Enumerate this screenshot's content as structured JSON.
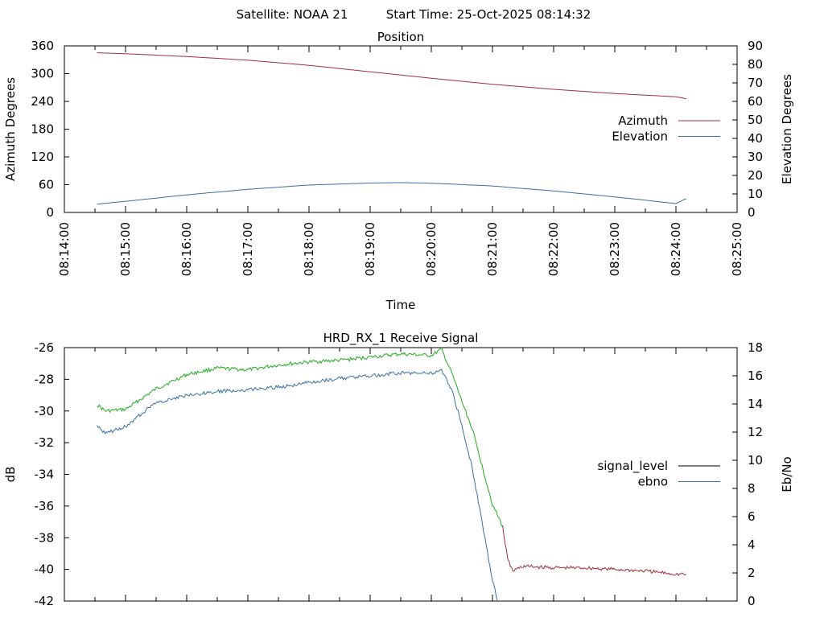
{
  "header": {
    "satellite": "Satellite: NOAA 21",
    "start_time": "Start Time: 25-Oct-2025 08:14:32"
  },
  "chart_data": [
    {
      "type": "line",
      "title": "Position",
      "xlabel": "Time",
      "ylabel": "Azimuth Degrees",
      "ylabel_right": "Elevation Degrees",
      "xlim": [
        "08:14:00",
        "08:25:00"
      ],
      "ylim": [
        0,
        360
      ],
      "ylim_right": [
        0,
        90
      ],
      "x_ticks": [
        "08:14:00",
        "08:15:00",
        "08:16:00",
        "08:17:00",
        "08:18:00",
        "08:19:00",
        "08:20:00",
        "08:21:00",
        "08:22:00",
        "08:23:00",
        "08:24:00",
        "08:25:00"
      ],
      "y_ticks": [
        0,
        60,
        120,
        180,
        240,
        300,
        360
      ],
      "y_ticks_right": [
        0,
        10,
        20,
        30,
        40,
        50,
        60,
        70,
        80,
        90
      ],
      "grid": false,
      "legend_position": "right",
      "series": [
        {
          "name": "Azimuth",
          "axis": "left",
          "color": "#a0303a",
          "x": [
            "08:14:32",
            "08:15:00",
            "08:16:00",
            "08:17:00",
            "08:18:00",
            "08:19:00",
            "08:20:00",
            "08:21:00",
            "08:22:00",
            "08:23:00",
            "08:24:00",
            "08:24:10"
          ],
          "y": [
            345,
            343,
            337,
            329,
            318,
            304,
            290,
            277,
            266,
            257,
            250,
            246
          ]
        },
        {
          "name": "Elevation",
          "axis": "right",
          "color": "#3a6fa3",
          "x": [
            "08:14:32",
            "08:15:00",
            "08:16:00",
            "08:17:00",
            "08:18:00",
            "08:19:00",
            "08:19:30",
            "08:20:00",
            "08:21:00",
            "08:22:00",
            "08:23:00",
            "08:24:00",
            "08:24:10"
          ],
          "y": [
            4.5,
            6,
            9.5,
            12.5,
            14.8,
            15.9,
            16.1,
            15.8,
            14.3,
            11.6,
            8.4,
            4.8,
            7.5
          ]
        }
      ]
    },
    {
      "type": "line",
      "title": "HRD_RX_1 Receive Signal",
      "xlabel": "",
      "ylabel": "dB",
      "ylabel_right": "Eb/No",
      "xlim": [
        "08:14:00",
        "08:25:00"
      ],
      "ylim": [
        -42,
        -26
      ],
      "ylim_right": [
        0,
        18
      ],
      "y_ticks": [
        -42,
        -40,
        -38,
        -36,
        -34,
        -32,
        -30,
        -28,
        -26
      ],
      "y_ticks_right": [
        0,
        2,
        4,
        6,
        8,
        10,
        12,
        14,
        16,
        18
      ],
      "grid": false,
      "legend_position": "right",
      "series": [
        {
          "name": "signal_level",
          "axis": "left",
          "color": "#000000",
          "segments": [
            {
              "color": "#1faa1f",
              "x": [
                "08:14:32",
                "08:14:40",
                "08:15:00",
                "08:15:30",
                "08:16:00",
                "08:16:30",
                "08:17:00",
                "08:17:30",
                "08:18:00",
                "08:18:30",
                "08:19:00",
                "08:19:30",
                "08:20:00",
                "08:20:10",
                "08:20:20",
                "08:20:30",
                "08:20:40",
                "08:20:50",
                "08:21:00",
                "08:21:10"
              ],
              "y": [
                -29.6,
                -30.0,
                -29.9,
                -28.6,
                -27.7,
                -27.3,
                -27.4,
                -27.1,
                -26.9,
                -26.8,
                -26.6,
                -26.4,
                -26.5,
                -26.1,
                -27.6,
                -29.4,
                -31.1,
                -33.5,
                -35.9,
                -37.3
              ]
            },
            {
              "color": "#a0303a",
              "x": [
                "08:21:10",
                "08:21:15",
                "08:21:20",
                "08:21:30",
                "08:22:00",
                "08:22:30",
                "08:23:00",
                "08:23:30",
                "08:24:00",
                "08:24:10"
              ],
              "y": [
                -37.3,
                -39.4,
                -40.1,
                -39.8,
                -39.9,
                -39.9,
                -40.0,
                -40.1,
                -40.3,
                -40.3
              ]
            }
          ]
        },
        {
          "name": "ebno",
          "axis": "right",
          "color": "#3a6fa3",
          "x": [
            "08:14:32",
            "08:14:40",
            "08:15:00",
            "08:15:30",
            "08:16:00",
            "08:16:30",
            "08:17:00",
            "08:17:30",
            "08:18:00",
            "08:18:30",
            "08:19:00",
            "08:19:30",
            "08:20:00",
            "08:20:10",
            "08:20:20",
            "08:20:30",
            "08:20:40",
            "08:20:50",
            "08:21:00",
            "08:21:05"
          ],
          "y": [
            12.5,
            11.9,
            12.4,
            14.1,
            14.6,
            14.9,
            15.0,
            15.2,
            15.5,
            15.8,
            16.0,
            16.2,
            16.2,
            16.4,
            15.0,
            12.5,
            9.5,
            5.5,
            1.5,
            0
          ]
        }
      ]
    }
  ]
}
